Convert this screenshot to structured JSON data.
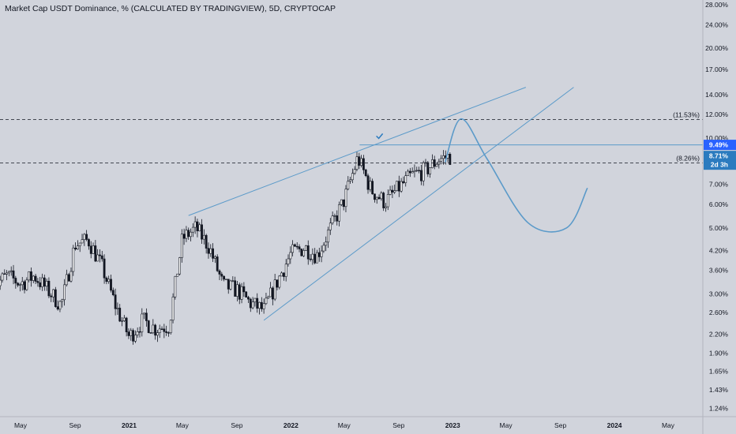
{
  "title": "Market Cap USDT Dominance, % (CALCULATED BY TRADINGVIEW), 5D, CRYPTOCAP",
  "colors": {
    "background": "#d1d4dc",
    "candle": "#131722",
    "drawing": "#5b9ac9",
    "highlight_label": "#2962ff",
    "current_label": "#2b7bbf",
    "grid_text": "#131722"
  },
  "chart_data": {
    "type": "candlestick",
    "y_scale": "log",
    "ylim": [
      1.2,
      28.0
    ],
    "y_ticks": [
      "28.00%",
      "24.00%",
      "20.00%",
      "17.00%",
      "14.00%",
      "12.00%",
      "10.00%",
      "8.00%",
      "7.00%",
      "6.00%",
      "5.00%",
      "4.20%",
      "3.60%",
      "3.00%",
      "2.60%",
      "2.20%",
      "1.90%",
      "1.65%",
      "1.43%",
      "1.24%"
    ],
    "y_tick_values": [
      28,
      24,
      20,
      17,
      14,
      12,
      10,
      8,
      7,
      6,
      5,
      4.2,
      3.6,
      3.0,
      2.6,
      2.2,
      1.9,
      1.65,
      1.43,
      1.24
    ],
    "x_ticks": [
      "May",
      "Sep",
      "2021",
      "May",
      "Sep",
      "2022",
      "May",
      "Sep",
      "2023",
      "May",
      "Sep",
      "2024",
      "May"
    ],
    "x_tick_values": [
      "2020-05",
      "2020-09",
      "2021-01",
      "2021-05",
      "2021-09",
      "2022-01",
      "2022-05",
      "2022-09",
      "2023-01",
      "2023-05",
      "2023-09",
      "2024-01",
      "2024-05"
    ],
    "price_path": [
      [
        "2020-03",
        3.2
      ],
      [
        "2020-04",
        3.45
      ],
      [
        "2020-05",
        3.25
      ],
      [
        "2020-06",
        3.45
      ],
      [
        "2020-07",
        3.1
      ],
      [
        "2020-08",
        2.75
      ],
      [
        "2020-09",
        4.4
      ],
      [
        "2020-10",
        4.55
      ],
      [
        "2020-11",
        3.7
      ],
      [
        "2020-12",
        2.75
      ],
      [
        "2021-01",
        2.15
      ],
      [
        "2021-02",
        2.45
      ],
      [
        "2021-03",
        2.3
      ],
      [
        "2021-04",
        2.35
      ],
      [
        "2021-05",
        4.6
      ],
      [
        "2021-06",
        5.0
      ],
      [
        "2021-07",
        4.3
      ],
      [
        "2021-08",
        3.2
      ],
      [
        "2021-09",
        3.1
      ],
      [
        "2021-10",
        2.8
      ],
      [
        "2021-11",
        2.65
      ],
      [
        "2021-12",
        3.3
      ],
      [
        "2022-01",
        4.1
      ],
      [
        "2022-02",
        4.3
      ],
      [
        "2022-03",
        4.05
      ],
      [
        "2022-04",
        5.0
      ],
      [
        "2022-05",
        6.2
      ],
      [
        "2022-06",
        8.6
      ],
      [
        "2022-07",
        6.7
      ],
      [
        "2022-08",
        6.1
      ],
      [
        "2022-09",
        6.8
      ],
      [
        "2022-10",
        7.5
      ],
      [
        "2022-11",
        7.8
      ],
      [
        "2022-12",
        8.5
      ],
      [
        "2022-12-28",
        8.71
      ]
    ],
    "current_value": "8.71%",
    "current_value_num": 8.71,
    "countdown": "2d 3h",
    "high_line_label": "9.49%",
    "high_line_value": 9.49,
    "annotations": [
      {
        "label": "(11.53%)",
        "value": 11.53
      },
      {
        "label": "(8.26%)",
        "value": 8.26
      }
    ],
    "wedge_upper": [
      [
        "2021-05-15",
        5.5
      ],
      [
        "2023-06-15",
        14.8
      ]
    ],
    "wedge_lower": [
      [
        "2021-11-01",
        2.45
      ],
      [
        "2023-10-01",
        14.8
      ]
    ],
    "projection": [
      [
        "2022-12-15",
        8.3
      ],
      [
        "2023-01-20",
        11.6
      ],
      [
        "2023-03-20",
        8.5
      ],
      [
        "2023-06-20",
        5.2
      ],
      [
        "2023-09-15",
        5.0
      ],
      [
        "2023-11-01",
        6.8
      ]
    ],
    "check_mark_at": [
      "2022-07-20",
      10.1
    ]
  }
}
